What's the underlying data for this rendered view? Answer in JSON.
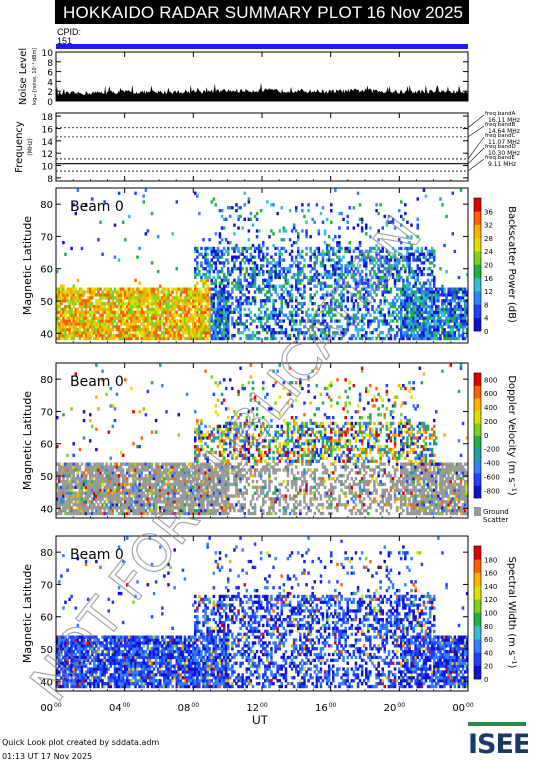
{
  "header": {
    "title": "HOKKAIDO RADAR SUMMARY PLOT",
    "date": "16 Nov 2025"
  },
  "cpid": {
    "label": "CPID:",
    "value": "151"
  },
  "colors": {
    "header_bg": "#000000",
    "cpid_bar": "#1e1ef0",
    "ground_scatter": "#999999"
  },
  "chart_data": [
    {
      "id": "noise",
      "type": "area",
      "ylabel": "Noise Level",
      "ylabel_sub": "log₁₀ [noise, 10⁻¹ dBm]",
      "yticks": [
        "0",
        "2",
        "4",
        "6",
        "8",
        "10"
      ],
      "ylim": [
        0,
        10
      ],
      "xlim": [
        0,
        24
      ],
      "x": [
        0,
        2,
        4,
        6,
        8,
        10,
        12,
        14,
        16,
        18,
        20,
        22,
        24
      ],
      "y": [
        1.2,
        1.4,
        1.6,
        1.5,
        1.7,
        1.8,
        1.9,
        1.8,
        1.7,
        1.9,
        1.6,
        1.7,
        1.6
      ]
    },
    {
      "id": "frequency",
      "type": "line",
      "ylabel": "Frequency",
      "ylabel_unit": "(MHz)",
      "yticks": [
        "8",
        "10",
        "12",
        "14",
        "16",
        "18"
      ],
      "ylim": [
        7.5,
        18.5
      ],
      "xlim": [
        0,
        24
      ],
      "bands": [
        {
          "label": "freq bandA",
          "value_label": "16.11 MHz",
          "mhz": 16.11
        },
        {
          "label": "freq bandB",
          "value_label": "14.64 MHz",
          "mhz": 14.64
        },
        {
          "label": "freq bandC",
          "value_label": "11.07 MHz",
          "mhz": 11.07
        },
        {
          "label": "freq bandD",
          "value_label": "10.30 MHz",
          "mhz": 10.3
        },
        {
          "label": "freq bandE",
          "value_label": "9.11 MHz",
          "mhz": 9.11
        }
      ]
    },
    {
      "id": "power",
      "type": "heatmap",
      "beam_label": "Beam  0",
      "ylabel": "Magnetic Latitude",
      "yticks": [
        "40",
        "50",
        "60",
        "70",
        "80"
      ],
      "ylim": [
        37,
        85
      ],
      "xlim": [
        0,
        24
      ],
      "colorbar": {
        "label": "Backscatter Power (dB)",
        "ticks": [
          "0",
          "4",
          "8",
          "12",
          "16",
          "20",
          "24",
          "28",
          "32",
          "36"
        ],
        "colors": [
          "#1010d0",
          "#2040ff",
          "#3080ff",
          "#30c0d0",
          "#20b040",
          "#80d020",
          "#e0e000",
          "#ffb000",
          "#ff6000",
          "#e00000"
        ]
      }
    },
    {
      "id": "velocity",
      "type": "heatmap",
      "beam_label": "Beam  0",
      "ylabel": "Magnetic Latitude",
      "yticks": [
        "40",
        "50",
        "60",
        "70",
        "80"
      ],
      "ylim": [
        37,
        85
      ],
      "xlim": [
        0,
        24
      ],
      "colorbar": {
        "label": "Doppler Velocity (m s⁻¹)",
        "ticks": [
          "800",
          "600",
          "400",
          "200",
          "0",
          "-200",
          "-400",
          "-600",
          "-800"
        ],
        "colors": [
          "#1010d0",
          "#2040ff",
          "#3080ff",
          "#20a0a0",
          "#20b040",
          "#80d020",
          "#e0e000",
          "#ffb000",
          "#ff6000",
          "#e00000"
        ],
        "extra_label": "Ground",
        "extra_label2": "Scatter"
      }
    },
    {
      "id": "width",
      "type": "heatmap",
      "beam_label": "Beam  0",
      "ylabel": "Magnetic Latitude",
      "yticks": [
        "40",
        "50",
        "60",
        "70",
        "80"
      ],
      "ylim": [
        37,
        85
      ],
      "xlim": [
        0,
        24
      ],
      "colorbar": {
        "label": "Spectral Width (m s⁻¹)",
        "ticks": [
          "0",
          "20",
          "40",
          "60",
          "80",
          "100",
          "120",
          "140",
          "160",
          "180"
        ],
        "colors": [
          "#1010d0",
          "#2040ff",
          "#3080ff",
          "#30c0d0",
          "#20b040",
          "#80d020",
          "#e0e000",
          "#ffb000",
          "#ff6000",
          "#e00000"
        ]
      }
    }
  ],
  "xaxis": {
    "ticks": [
      "00",
      "04",
      "08",
      "12",
      "16",
      "20",
      "00"
    ],
    "tick_suffix": "00",
    "title": "UT"
  },
  "watermark": "NOT FOR PUBLICATION",
  "footer": {
    "credit": "Quick Look plot created by sddata.adm",
    "time": "01:13 UT 17 Nov 2025"
  },
  "logo": {
    "text": "ISEE"
  }
}
